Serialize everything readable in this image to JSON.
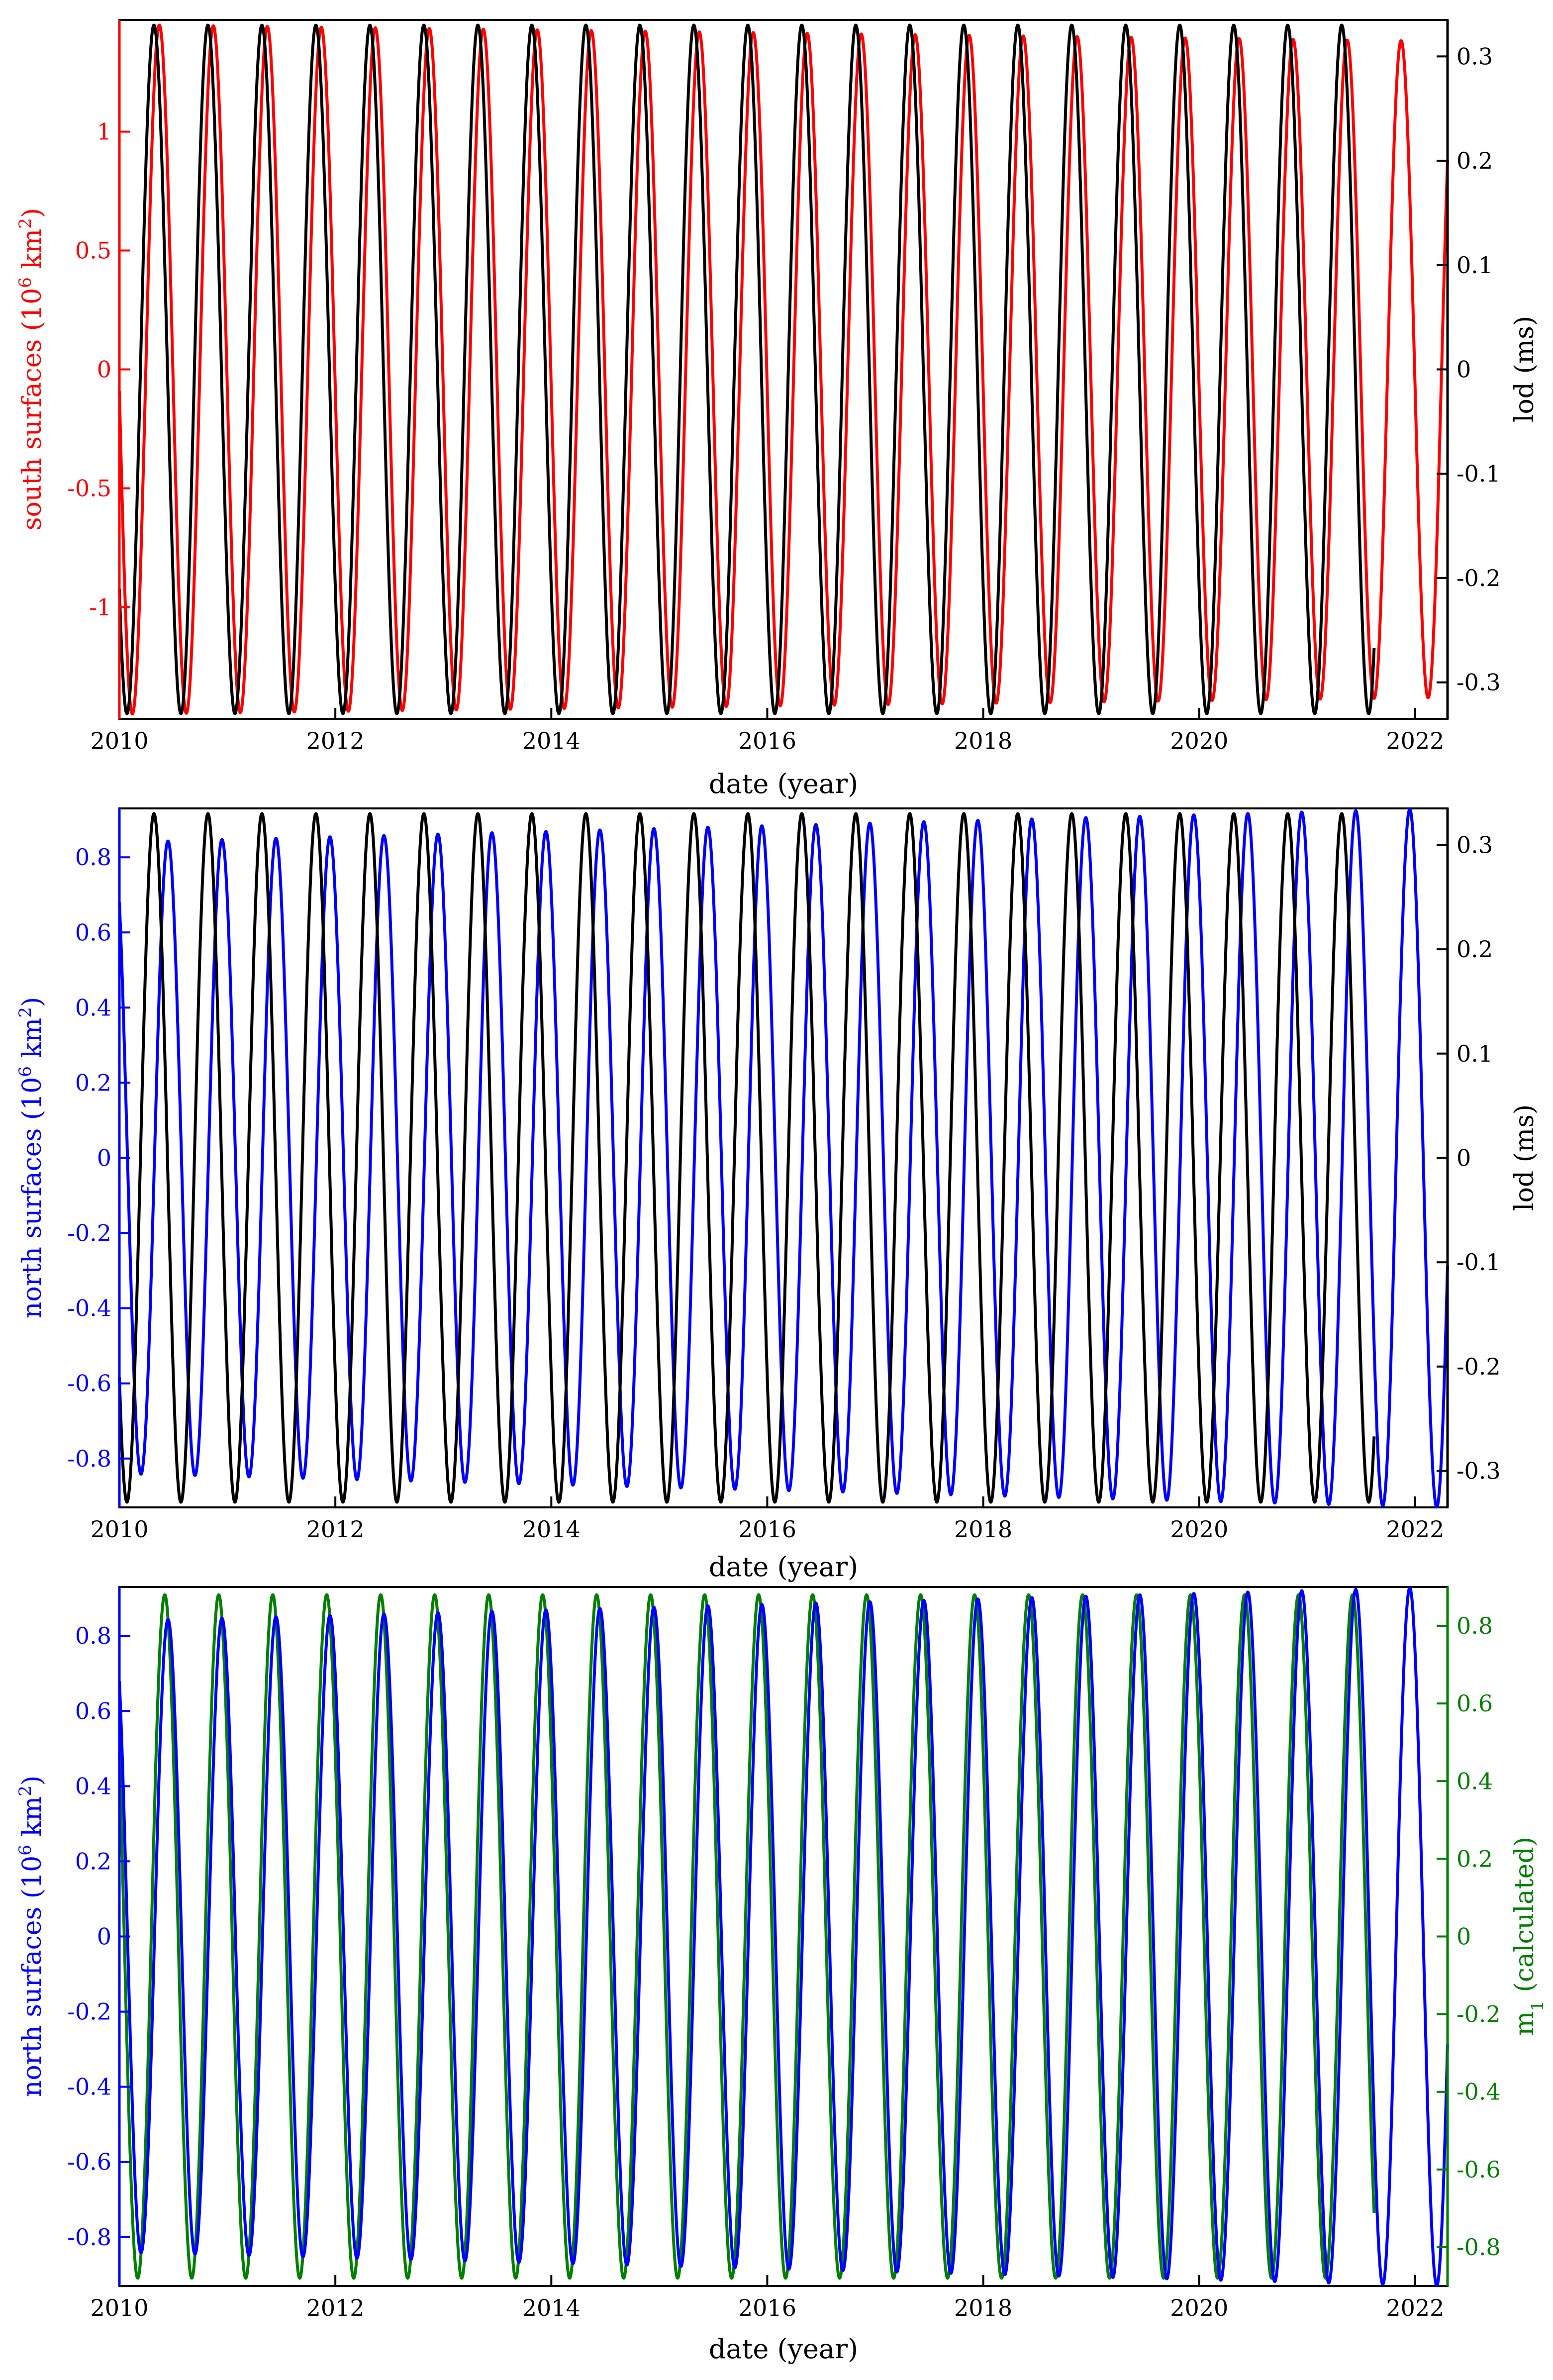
{
  "figure": {
    "panel_count": 3
  },
  "chart_data": [
    {
      "type": "line",
      "panel": "top",
      "xlabel": "date (year)",
      "xlim": [
        2010,
        2022.3
      ],
      "xticks": [
        2010,
        2012,
        2014,
        2016,
        2018,
        2020,
        2022
      ],
      "xtick_labels": [
        "2010",
        "2012",
        "2014",
        "2016",
        "2018",
        "2020",
        "2022"
      ],
      "left_axis": {
        "label": "south surfaces (10",
        "label_sup": "6",
        "label_unit": " km",
        "label_unit_sup": "2",
        "label_end": ")",
        "color": "#ff0000",
        "ylim": [
          -1.47,
          1.47
        ],
        "ticks": [
          -1,
          -0.5,
          0,
          0.5,
          1
        ],
        "tick_labels": [
          "-1",
          "-0.5",
          "0",
          "0.5",
          "1"
        ]
      },
      "right_axis": {
        "label": "lod (ms)",
        "color": "#000000",
        "ylim": [
          -0.335,
          0.335
        ],
        "ticks": [
          -0.3,
          -0.2,
          -0.1,
          0,
          0.1,
          0.2,
          0.3
        ],
        "tick_labels": [
          "-0.3",
          "-0.2",
          "-0.1",
          "0",
          "0.1",
          "0.2",
          "0.3"
        ]
      },
      "series": [
        {
          "name": "south surfaces",
          "axis": "left",
          "color": "#ff0000",
          "period_years": 0.5,
          "amplitude": 1.45,
          "amplitude_end": 1.38,
          "peak_year": 2010.37,
          "x_start": 2010.0,
          "x_end": 2022.3
        },
        {
          "name": "lod",
          "axis": "right",
          "color": "#000000",
          "period_years": 0.5,
          "amplitude": 0.33,
          "amplitude_end": 0.33,
          "peak_year": 2010.32,
          "x_start": 2010.0,
          "x_end": 2021.62
        }
      ]
    },
    {
      "type": "line",
      "panel": "middle",
      "xlabel": "date (year)",
      "xlim": [
        2010,
        2022.3
      ],
      "xticks": [
        2010,
        2012,
        2014,
        2016,
        2018,
        2020,
        2022
      ],
      "xtick_labels": [
        "2010",
        "2012",
        "2014",
        "2016",
        "2018",
        "2020",
        "2022"
      ],
      "left_axis": {
        "label": "north surfaces (10",
        "label_sup": "6",
        "label_unit": " km",
        "label_unit_sup": "2",
        "label_end": ")",
        "color": "#0000ff",
        "ylim": [
          -0.93,
          0.93
        ],
        "ticks": [
          -0.8,
          -0.6,
          -0.4,
          -0.2,
          0,
          0.2,
          0.4,
          0.6,
          0.8
        ],
        "tick_labels": [
          "-0.8",
          "-0.6",
          "-0.4",
          "-0.2",
          "0",
          "0.2",
          "0.4",
          "0.6",
          "0.8"
        ]
      },
      "right_axis": {
        "label": "lod (ms)",
        "color": "#000000",
        "ylim": [
          -0.335,
          0.335
        ],
        "ticks": [
          -0.3,
          -0.2,
          -0.1,
          0,
          0.1,
          0.2,
          0.3
        ],
        "tick_labels": [
          "-0.3",
          "-0.2",
          "-0.1",
          "0",
          "0.1",
          "0.2",
          "0.3"
        ]
      },
      "series": [
        {
          "name": "north surfaces",
          "axis": "left",
          "color": "#0000ff",
          "period_years": 0.5,
          "amplitude": 0.84,
          "amplitude_end": 0.93,
          "peak_year": 2010.45,
          "x_start": 2010.0,
          "x_end": 2022.3
        },
        {
          "name": "lod",
          "axis": "right",
          "color": "#000000",
          "period_years": 0.5,
          "amplitude": 0.33,
          "amplitude_end": 0.33,
          "peak_year": 2010.32,
          "x_start": 2010.0,
          "x_end": 2021.62
        }
      ]
    },
    {
      "type": "line",
      "panel": "bottom",
      "xlabel": "date (year)",
      "xlim": [
        2010,
        2022.3
      ],
      "xticks": [
        2010,
        2012,
        2014,
        2016,
        2018,
        2020,
        2022
      ],
      "xtick_labels": [
        "2010",
        "2012",
        "2014",
        "2016",
        "2018",
        "2020",
        "2022"
      ],
      "left_axis": {
        "label": "north surfaces (10",
        "label_sup": "6",
        "label_unit": " km",
        "label_unit_sup": "2",
        "label_end": ")",
        "color": "#0000ff",
        "ylim": [
          -0.93,
          0.93
        ],
        "ticks": [
          -0.8,
          -0.6,
          -0.4,
          -0.2,
          0,
          0.2,
          0.4,
          0.6,
          0.8
        ],
        "tick_labels": [
          "-0.8",
          "-0.6",
          "-0.4",
          "-0.2",
          "0",
          "0.2",
          "0.4",
          "0.6",
          "0.8"
        ]
      },
      "right_axis": {
        "label": "m",
        "label_sub": "1",
        "label_end": " (calculated)",
        "color": "#008000",
        "ylim": [
          -0.9,
          0.9
        ],
        "ticks": [
          -0.8,
          -0.6,
          -0.4,
          -0.2,
          0,
          0.2,
          0.4,
          0.6,
          0.8
        ],
        "tick_labels": [
          "-0.8",
          "-0.6",
          "-0.4",
          "-0.2",
          "0",
          "0.2",
          "0.4",
          "0.6",
          "0.8"
        ]
      },
      "series": [
        {
          "name": "m1 (calculated)",
          "axis": "right",
          "color": "#008000",
          "period_years": 0.5,
          "amplitude": 0.88,
          "amplitude_end": 0.88,
          "peak_year": 2010.42,
          "x_start": 2010.0,
          "x_end": 2021.62
        },
        {
          "name": "north surfaces",
          "axis": "left",
          "color": "#0000ff",
          "period_years": 0.5,
          "amplitude": 0.84,
          "amplitude_end": 0.93,
          "peak_year": 2010.45,
          "x_start": 2010.0,
          "x_end": 2022.3
        }
      ]
    }
  ]
}
